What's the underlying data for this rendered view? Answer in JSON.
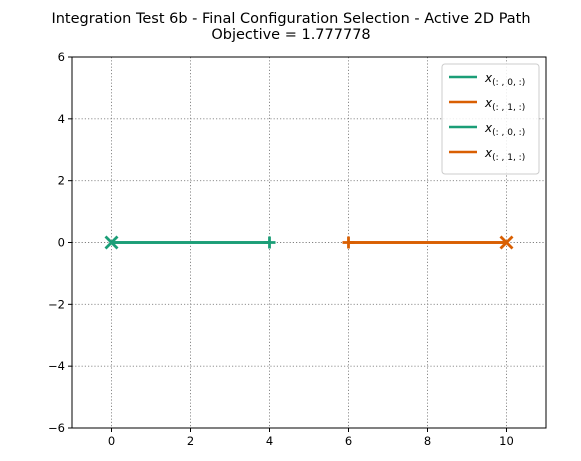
{
  "chart_data": {
    "type": "line",
    "title": "Integration Test 6b - Final Configuration Selection - Active 2D Path",
    "subtitle": "Objective = 1.777778",
    "xlabel": "",
    "ylabel": "",
    "xlim": [
      -1,
      11
    ],
    "ylim": [
      -6,
      6
    ],
    "xticks": [
      0,
      2,
      4,
      6,
      8,
      10
    ],
    "yticks": [
      -6,
      -4,
      -2,
      0,
      2,
      4,
      6
    ],
    "grid": true,
    "legend_position": "top-right",
    "series": [
      {
        "name": "x(:,0,:)",
        "color": "#1b9e77",
        "x": [
          0,
          4
        ],
        "y": [
          0,
          0
        ],
        "start_marker": "x",
        "end_marker": "+"
      },
      {
        "name": "x(:,1,:)",
        "color": "#d95f02",
        "x": [
          10,
          6
        ],
        "y": [
          0,
          0
        ],
        "start_marker": "x",
        "end_marker": "+"
      },
      {
        "name": "x(:,0,:)",
        "color": "#1b9e77",
        "x": [
          0,
          4
        ],
        "y": [
          0,
          0
        ],
        "start_marker": "",
        "end_marker": ""
      },
      {
        "name": "x(:,1,:)",
        "color": "#d95f02",
        "x": [
          10,
          6
        ],
        "y": [
          0,
          0
        ],
        "start_marker": "",
        "end_marker": ""
      }
    ],
    "legend": [
      {
        "base": "x",
        "sub": "(: , 0, :)",
        "color": "#1b9e77"
      },
      {
        "base": "x",
        "sub": "(: , 1, :)",
        "color": "#d95f02"
      },
      {
        "base": "x",
        "sub": "(: , 0, :)",
        "color": "#1b9e77"
      },
      {
        "base": "x",
        "sub": "(: , 1, :)",
        "color": "#d95f02"
      }
    ]
  }
}
